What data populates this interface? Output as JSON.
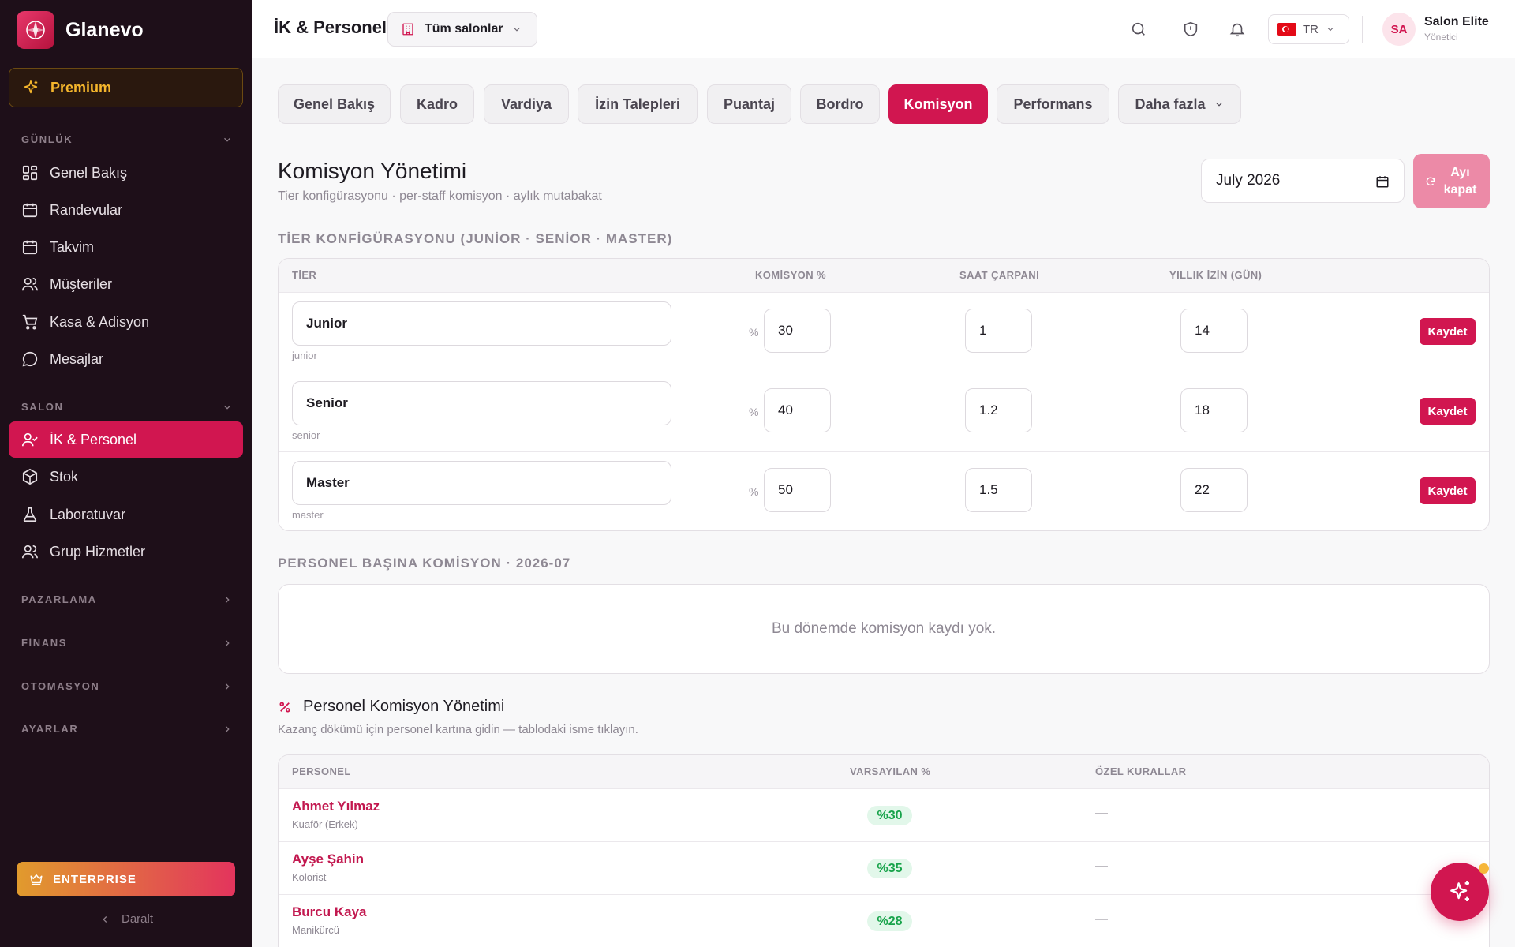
{
  "brand": {
    "name": "Glanevo"
  },
  "sidebar": {
    "premium_label": "Premium",
    "sections": {
      "daily": "GÜNLÜK",
      "salon": "SALON",
      "marketing": "PAZARLAMA",
      "finance": "FİNANS",
      "automation": "OTOMASYON",
      "settings": "AYARLAR"
    },
    "daily_items": [
      {
        "label": "Genel Bakış",
        "icon": "grid-icon"
      },
      {
        "label": "Randevular",
        "icon": "calendar-icon"
      },
      {
        "label": "Takvim",
        "icon": "calendar-grid-icon"
      },
      {
        "label": "Müşteriler",
        "icon": "users-icon"
      },
      {
        "label": "Kasa & Adisyon",
        "icon": "cart-icon"
      },
      {
        "label": "Mesajlar",
        "icon": "message-icon"
      }
    ],
    "salon_items": [
      {
        "label": "İK & Personel",
        "icon": "user-check-icon",
        "active": true
      },
      {
        "label": "Stok",
        "icon": "box-icon"
      },
      {
        "label": "Laboratuvar",
        "icon": "flask-icon"
      },
      {
        "label": "Grup Hizmetler",
        "icon": "users-icon"
      }
    ],
    "enterprise_label": "ENTERPRISE",
    "collapse_label": "Daralt"
  },
  "topbar": {
    "title": "İK & Personel",
    "salon_select": "Tüm salonlar",
    "language": "TR",
    "user_initials": "SA",
    "user_name": "Salon Elite",
    "user_role": "Yönetici"
  },
  "tabs": [
    "Genel Bakış",
    "Kadro",
    "Vardiya",
    "İzin Talepleri",
    "Puantaj",
    "Bordro",
    "Komisyon",
    "Performans",
    "Daha fazla"
  ],
  "active_tab": "Komisyon",
  "page": {
    "title": "Komisyon Yönetimi",
    "subtitle": "Tier konfigürasyonu · per-staff komisyon · aylık mutabakat",
    "month_value": "July  2026",
    "close_month_label": "Ayı kapat"
  },
  "tier_section": {
    "label": "TİER KONFİGÜRASYONU (JUNİOR · SENİOR · MASTER)",
    "headers": {
      "tier": "TİER",
      "commission": "KOMİSYON %",
      "hour_multiplier": "SAAT ÇARPANI",
      "annual_leave": "YILLIK İZİN (GÜN)"
    },
    "pct_symbol": "%",
    "save_label": "Kaydet",
    "rows": [
      {
        "name": "Junior",
        "slug": "junior",
        "commission": "30",
        "multiplier": "1",
        "leave": "14"
      },
      {
        "name": "Senior",
        "slug": "senior",
        "commission": "40",
        "multiplier": "1.2",
        "leave": "18"
      },
      {
        "name": "Master",
        "slug": "master",
        "commission": "50",
        "multiplier": "1.5",
        "leave": "22"
      }
    ]
  },
  "per_staff_section": {
    "label": "PERSONEL BAŞINA KOMİSYON · 2026-07",
    "empty_text": "Bu dönemde komisyon kaydı yok."
  },
  "staff_section": {
    "title": "Personel Komisyon Yönetimi",
    "subtitle": "Kazanç dökümü için personel kartına gidin — tablodaki isme tıklayın.",
    "headers": {
      "staff": "PERSONEL",
      "default_pct": "VARSAYILAN %",
      "custom_rules": "ÖZEL KURALLAR"
    },
    "rows": [
      {
        "name": "Ahmet Yılmaz",
        "role": "Kuaför (Erkek)",
        "pct": "%30",
        "rules": "—"
      },
      {
        "name": "Ayşe Şahin",
        "role": "Kolorist",
        "pct": "%35",
        "rules": "—"
      },
      {
        "name": "Burcu Kaya",
        "role": "Manikürcü",
        "pct": "%28",
        "rules": "—"
      }
    ]
  },
  "colors": {
    "accent": "#d11650",
    "sidebar_bg": "#1e0f19",
    "premium": "#f5b62c",
    "badge_green": "#17a34a"
  }
}
